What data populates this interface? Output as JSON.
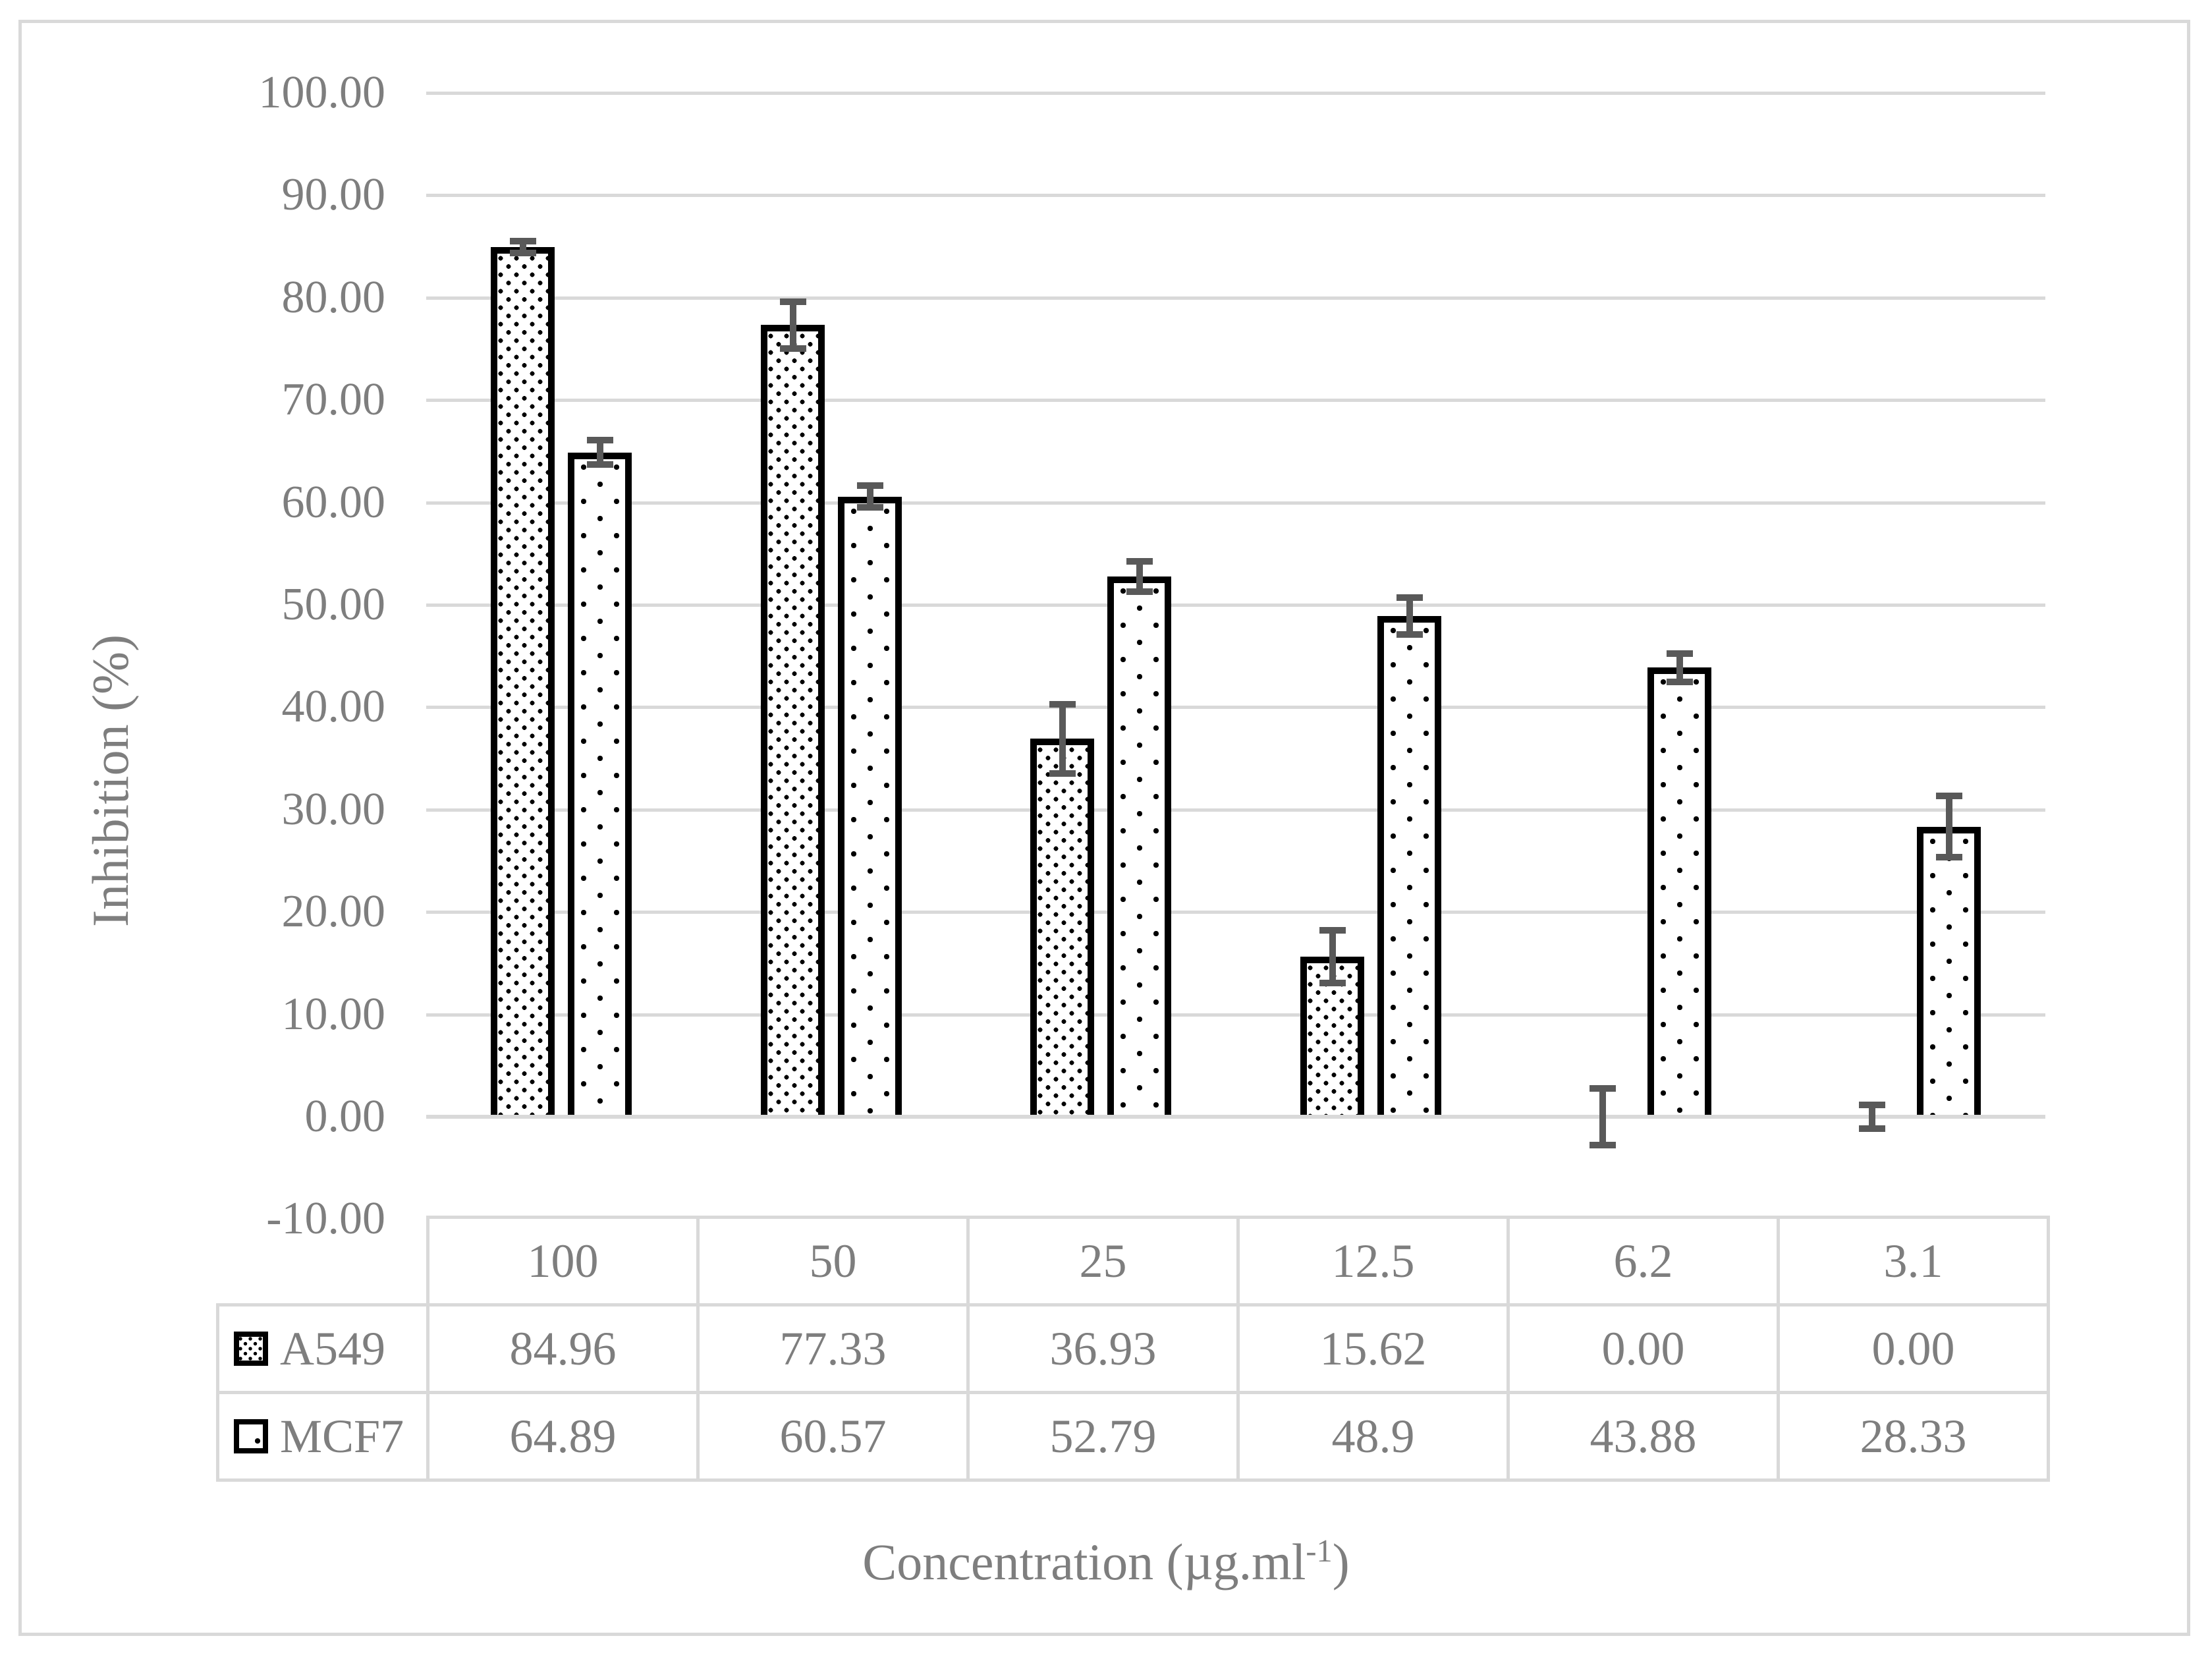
{
  "chart_data": {
    "type": "bar",
    "title": "",
    "ylabel": "Inhibition (%)",
    "xlabel": "Concentration (µg.ml-1)",
    "xlabel_parts": {
      "prefix": "Concentration (µg.ml",
      "sup": "-1",
      "suffix": ")"
    },
    "categories": [
      "100",
      "50",
      "25",
      "12.5",
      "6.2",
      "3.1"
    ],
    "series": [
      {
        "name": "A549",
        "pattern": "dense-dots",
        "values": [
          84.96,
          77.33,
          36.93,
          15.62,
          0,
          0
        ],
        "errors": [
          0.9,
          2.6,
          3.7,
          2.9,
          3.1,
          1.5
        ]
      },
      {
        "name": "MCF7",
        "pattern": "sparse-dots",
        "values": [
          64.89,
          60.57,
          52.79,
          48.9,
          43.88,
          28.33
        ],
        "errors": [
          1.5,
          1.4,
          1.8,
          2.1,
          1.7,
          3.3
        ]
      }
    ],
    "ylim": [
      -10,
      100
    ],
    "ytick_step": 10,
    "ytick_labels": [
      "100.00",
      "90.00",
      "80.00",
      "70.00",
      "60.00",
      "50.00",
      "40.00",
      "30.00",
      "20.00",
      "10.00",
      "0.00",
      "-10.00"
    ],
    "grid": true,
    "legend_position": "table-rows"
  },
  "table": {
    "column_headers": [
      "100",
      "50",
      "25",
      "12.5",
      "6.2",
      "3.1"
    ],
    "rows": [
      {
        "label": "A549",
        "values": [
          "84.96",
          "77.33",
          "36.93",
          "15.62",
          "0.00",
          "0.00"
        ]
      },
      {
        "label": "MCF7",
        "values": [
          "64.89",
          "60.57",
          "52.79",
          "48.9",
          "43.88",
          "28.33"
        ]
      }
    ]
  },
  "colors": {
    "text": "#7e7e7e",
    "gridline": "#d9d9d9",
    "zero_line": "#d9d9d9",
    "table_border": "#d9d9d9",
    "figure_border": "#d9d9d9",
    "bar_border": "#000000",
    "error_bar": "#595959",
    "background": "#ffffff"
  }
}
